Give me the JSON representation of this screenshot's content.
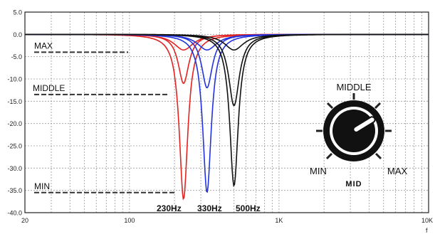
{
  "chart_data": {
    "type": "line",
    "x_scale": "log",
    "xlim": [
      20,
      10000
    ],
    "ylim": [
      -40,
      5
    ],
    "grid": true,
    "y_ticks": [
      5,
      0,
      -5,
      -10,
      -15,
      -20,
      -25,
      -30,
      -35,
      -40
    ],
    "y_tick_labels": [
      "5.0",
      "0.0",
      "-5.0",
      "-10.0",
      "-15.0",
      "-20.0",
      "-25.0",
      "-30.0",
      "-35.0",
      "-40.0"
    ],
    "x_tick_labels": [
      {
        "x": 20,
        "label": "20"
      },
      {
        "x": 100,
        "label": "100"
      },
      {
        "x": 1000,
        "label": "1K"
      },
      {
        "x": 10000,
        "label": "10K"
      }
    ],
    "x_unit": "f",
    "series": [
      {
        "color": "#e32222",
        "fc": 230,
        "depth": 3.5,
        "q": 1.8
      },
      {
        "color": "#e32222",
        "fc": 230,
        "depth": 11,
        "q": 1.0
      },
      {
        "color": "#e32222",
        "fc": 230,
        "depth": 37,
        "q": 0.8
      },
      {
        "color": "#2233dd",
        "fc": 330,
        "depth": 3.5,
        "q": 1.8
      },
      {
        "color": "#2233dd",
        "fc": 330,
        "depth": 12,
        "q": 1.0
      },
      {
        "color": "#2233dd",
        "fc": 330,
        "depth": 35.5,
        "q": 0.8
      },
      {
        "color": "#111111",
        "fc": 500,
        "depth": 3.5,
        "q": 1.8
      },
      {
        "color": "#111111",
        "fc": 500,
        "depth": 16,
        "q": 1.0
      },
      {
        "color": "#111111",
        "fc": 500,
        "depth": 34,
        "q": 0.8
      }
    ],
    "annotations": {
      "levels": [
        {
          "label": "MAX",
          "y": -4
        },
        {
          "label": "MIDDLE",
          "y": -13.5
        },
        {
          "label": "MIN",
          "y": -35.5
        }
      ],
      "freq_labels": [
        "230Hz",
        "330Hz",
        "500Hz"
      ]
    },
    "knob": {
      "top_label": "MIDDLE",
      "left_label": "MIN",
      "right_label": "MAX",
      "center_label": "MID",
      "pointer_level": 0.05
    }
  }
}
